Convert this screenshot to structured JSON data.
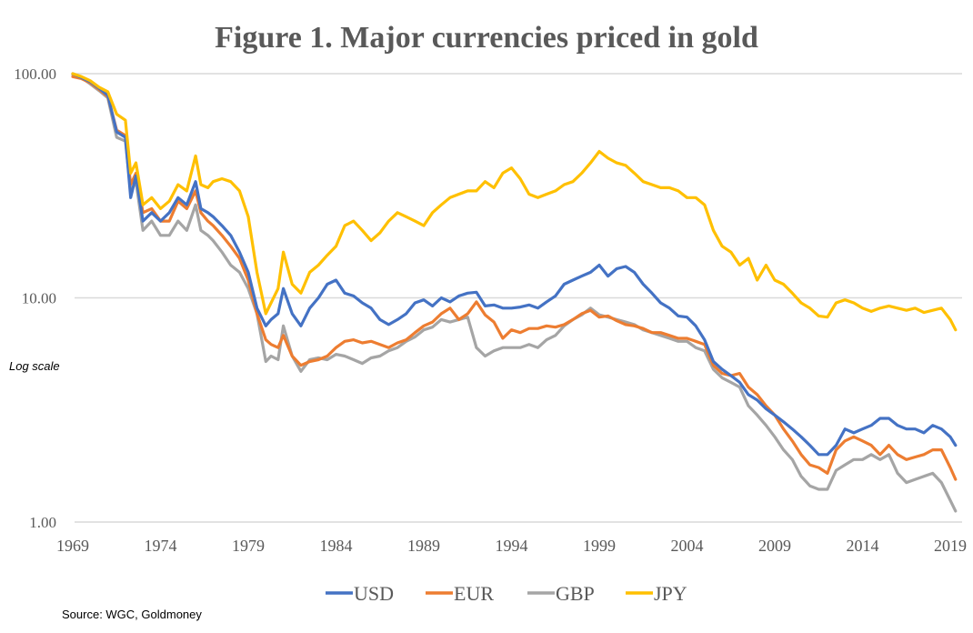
{
  "chart_data": {
    "type": "line",
    "title": "Figure 1.  Major currencies priced in gold",
    "xlabel": "",
    "ylabel": "",
    "annotation": "Log scale",
    "source": "Source: WGC, Goldmoney",
    "yscale": "log",
    "ylim": [
      1,
      100
    ],
    "xlim": [
      1969,
      2019.3
    ],
    "grid": true,
    "legend_position": "bottom",
    "y_ticks": [
      {
        "value": 100,
        "label": "100.00"
      },
      {
        "value": 10,
        "label": "10.00"
      },
      {
        "value": 1,
        "label": "1.00"
      }
    ],
    "x_ticks": [
      {
        "value": 1969,
        "label": "1969"
      },
      {
        "value": 1974,
        "label": "1974"
      },
      {
        "value": 1979,
        "label": "1979"
      },
      {
        "value": 1984,
        "label": "1984"
      },
      {
        "value": 1989,
        "label": "1989"
      },
      {
        "value": 1994,
        "label": "1994"
      },
      {
        "value": 1999,
        "label": "1999"
      },
      {
        "value": 2004,
        "label": "2004"
      },
      {
        "value": 2009,
        "label": "2009"
      },
      {
        "value": 2014,
        "label": "2014"
      },
      {
        "value": 2019,
        "label": "2019"
      }
    ],
    "x": [
      1969.0,
      1969.5,
      1970.0,
      1970.5,
      1971.0,
      1971.5,
      1972.0,
      1972.3,
      1972.6,
      1973.0,
      1973.5,
      1974.0,
      1974.5,
      1975.0,
      1975.5,
      1976.0,
      1976.3,
      1976.7,
      1977.0,
      1977.5,
      1978.0,
      1978.5,
      1979.0,
      1979.5,
      1980.0,
      1980.3,
      1980.7,
      1981.0,
      1981.5,
      1982.0,
      1982.5,
      1983.0,
      1983.5,
      1984.0,
      1984.5,
      1985.0,
      1985.5,
      1986.0,
      1986.5,
      1987.0,
      1987.5,
      1988.0,
      1988.5,
      1989.0,
      1989.5,
      1990.0,
      1990.5,
      1991.0,
      1991.5,
      1992.0,
      1992.5,
      1993.0,
      1993.5,
      1994.0,
      1994.5,
      1995.0,
      1995.5,
      1996.0,
      1996.5,
      1997.0,
      1997.5,
      1998.0,
      1998.5,
      1999.0,
      1999.5,
      2000.0,
      2000.5,
      2001.0,
      2001.5,
      2002.0,
      2002.5,
      2003.0,
      2003.5,
      2004.0,
      2004.5,
      2005.0,
      2005.5,
      2006.0,
      2006.5,
      2007.0,
      2007.5,
      2008.0,
      2008.5,
      2009.0,
      2009.5,
      2010.0,
      2010.5,
      2011.0,
      2011.5,
      2012.0,
      2012.5,
      2013.0,
      2013.5,
      2014.0,
      2014.5,
      2015.0,
      2015.5,
      2016.0,
      2016.5,
      2017.0,
      2017.5,
      2018.0,
      2018.5,
      2019.0,
      2019.3
    ],
    "series": [
      {
        "name": "USD",
        "color": "#4472C4",
        "values": [
          100,
          96,
          92,
          86,
          80,
          55,
          52,
          28,
          35,
          22,
          24,
          22,
          24,
          28,
          26,
          33,
          25,
          24,
          23,
          21,
          19,
          16,
          13,
          9,
          7.5,
          8,
          8.5,
          11,
          8.5,
          7.5,
          9,
          10,
          11.5,
          12,
          10.5,
          10.2,
          9.5,
          9,
          8,
          7.6,
          8,
          8.5,
          9.5,
          9.8,
          9.2,
          10,
          9.6,
          10.2,
          10.5,
          10.6,
          9.2,
          9.3,
          9.0,
          9.0,
          9.1,
          9.3,
          9.0,
          9.6,
          10.2,
          11.5,
          12,
          12.5,
          13,
          14,
          12.5,
          13.5,
          13.8,
          13,
          11.5,
          10.5,
          9.5,
          9,
          8.3,
          8.2,
          7.5,
          6.5,
          5.2,
          4.8,
          4.5,
          4.2,
          3.7,
          3.5,
          3.2,
          3.0,
          2.8,
          2.6,
          2.4,
          2.2,
          2.0,
          2.0,
          2.2,
          2.6,
          2.5,
          2.6,
          2.7,
          2.9,
          2.9,
          2.7,
          2.6,
          2.6,
          2.5,
          2.7,
          2.6,
          2.4,
          2.2
        ]
      },
      {
        "name": "EUR",
        "color": "#ED7D31",
        "values": [
          97,
          95,
          91,
          85,
          79,
          56,
          53,
          32,
          36,
          24,
          25,
          22,
          22,
          27,
          25,
          30,
          24,
          22,
          21,
          19,
          17,
          15,
          12,
          8.5,
          6.5,
          6.2,
          6.0,
          6.8,
          5.5,
          5.0,
          5.2,
          5.3,
          5.5,
          6.0,
          6.4,
          6.5,
          6.3,
          6.4,
          6.2,
          6.0,
          6.3,
          6.5,
          7.0,
          7.5,
          7.8,
          8.5,
          9.0,
          8.0,
          8.5,
          9.6,
          8.4,
          7.8,
          6.6,
          7.2,
          7.0,
          7.3,
          7.3,
          7.5,
          7.4,
          7.6,
          8.0,
          8.5,
          8.8,
          8.2,
          8.3,
          7.9,
          7.6,
          7.5,
          7.3,
          7.0,
          7.0,
          6.8,
          6.6,
          6.6,
          6.4,
          6.2,
          5.0,
          4.6,
          4.5,
          4.6,
          4.0,
          3.7,
          3.3,
          3.0,
          2.6,
          2.3,
          2.0,
          1.8,
          1.75,
          1.65,
          2.1,
          2.3,
          2.4,
          2.3,
          2.2,
          2.0,
          2.2,
          2.0,
          1.9,
          1.95,
          2.0,
          2.1,
          2.1,
          1.75,
          1.55
        ]
      },
      {
        "name": "GBP",
        "color": "#A5A5A5",
        "values": [
          99,
          96,
          90,
          84,
          78,
          52,
          50,
          30,
          33,
          20,
          22,
          19,
          19,
          22,
          20,
          26,
          20,
          19,
          18,
          16,
          14,
          13,
          11,
          8.5,
          5.2,
          5.5,
          5.3,
          7.5,
          5.5,
          4.7,
          5.3,
          5.4,
          5.3,
          5.6,
          5.5,
          5.3,
          5.1,
          5.4,
          5.5,
          5.8,
          6.0,
          6.4,
          6.7,
          7.2,
          7.4,
          8.0,
          7.8,
          8.0,
          8.2,
          6.0,
          5.5,
          5.8,
          6.0,
          6.0,
          6.0,
          6.2,
          6.0,
          6.5,
          6.8,
          7.5,
          8.0,
          8.4,
          9.0,
          8.4,
          8.2,
          8.0,
          7.8,
          7.6,
          7.2,
          7.0,
          6.8,
          6.6,
          6.4,
          6.4,
          6.0,
          5.8,
          4.8,
          4.4,
          4.2,
          4.0,
          3.3,
          3.0,
          2.7,
          2.4,
          2.1,
          1.9,
          1.6,
          1.45,
          1.4,
          1.4,
          1.7,
          1.8,
          1.9,
          1.9,
          2.0,
          1.9,
          2.0,
          1.65,
          1.5,
          1.55,
          1.6,
          1.65,
          1.5,
          1.25,
          1.12
        ]
      },
      {
        "name": "JPY",
        "color": "#FFC000",
        "values": [
          100,
          97,
          93,
          87,
          83,
          66,
          62,
          36,
          40,
          26,
          28,
          25,
          27,
          32,
          30,
          43,
          32,
          31,
          33,
          34,
          33,
          30,
          23,
          13,
          8.5,
          9.5,
          11,
          16,
          11.5,
          10.5,
          13,
          14,
          15.5,
          17,
          21,
          22,
          20,
          18,
          19.5,
          22,
          24,
          23,
          22,
          21,
          24,
          26,
          28,
          29,
          30,
          30,
          33,
          31,
          36,
          38,
          34,
          29,
          28,
          29,
          30,
          32,
          33,
          36,
          40,
          45,
          42,
          40,
          39,
          36,
          33,
          32,
          31,
          31,
          30,
          28,
          28,
          26,
          20,
          17,
          16,
          14,
          15,
          12,
          14,
          12,
          11.5,
          10.5,
          9.5,
          9,
          8.3,
          8.2,
          9.5,
          9.8,
          9.5,
          9.0,
          8.7,
          9.0,
          9.2,
          9.0,
          8.8,
          9.0,
          8.6,
          8.8,
          9.0,
          8.0,
          7.2
        ]
      }
    ]
  }
}
